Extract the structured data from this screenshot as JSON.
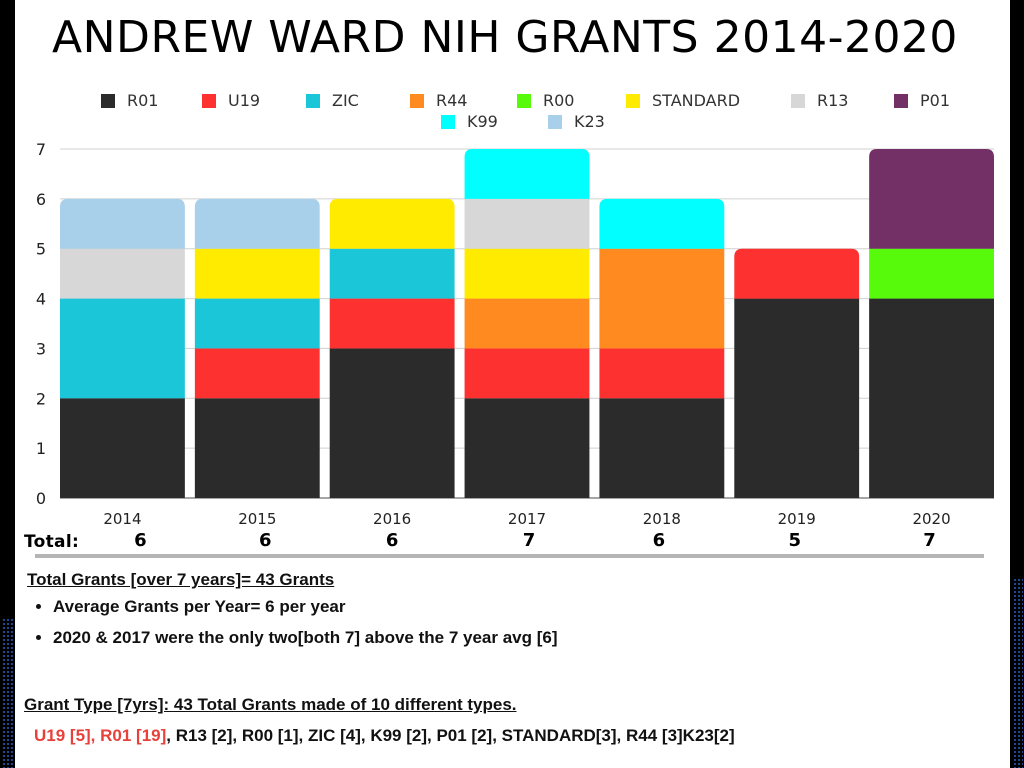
{
  "chart_data": {
    "type": "bar",
    "stacked": true,
    "title": "ANDREW WARD NIH GRANTS 2014-2020",
    "xlabel": "",
    "ylabel": "",
    "categories": [
      "2014",
      "2015",
      "2016",
      "2017",
      "2018",
      "2019",
      "2020"
    ],
    "ylim": [
      0,
      7
    ],
    "yticks": [
      "0",
      "1",
      "2",
      "3",
      "4",
      "5",
      "6",
      "7"
    ],
    "grid": true,
    "legend_position": "top-center",
    "series": [
      {
        "name": "R01",
        "color": "#2b2b2b",
        "values": [
          2,
          2,
          3,
          2,
          2,
          4,
          4
        ]
      },
      {
        "name": "U19",
        "color": "#fe3131",
        "values": [
          0,
          1,
          1,
          1,
          1,
          1,
          0
        ]
      },
      {
        "name": "ZIC",
        "color": "#1bc6d9",
        "values": [
          2,
          1,
          1,
          0,
          0,
          0,
          0
        ]
      },
      {
        "name": "R44",
        "color": "#fe8a20",
        "values": [
          0,
          0,
          0,
          1,
          2,
          0,
          0
        ]
      },
      {
        "name": "R00",
        "color": "#58fa0c",
        "values": [
          0,
          0,
          0,
          0,
          0,
          0,
          1
        ]
      },
      {
        "name": "STANDARD",
        "color": "#ffeb00",
        "values": [
          0,
          1,
          1,
          1,
          0,
          0,
          0
        ]
      },
      {
        "name": "R13",
        "color": "#d7d7d7",
        "values": [
          1,
          0,
          0,
          1,
          0,
          0,
          0
        ]
      },
      {
        "name": "P01",
        "color": "#733066",
        "values": [
          0,
          0,
          0,
          0,
          0,
          0,
          2
        ]
      },
      {
        "name": "K99",
        "color": "#00fffe",
        "values": [
          0,
          0,
          0,
          1,
          1,
          0,
          0
        ]
      },
      {
        "name": "K23",
        "color": "#a9d0ea",
        "values": [
          1,
          1,
          0,
          0,
          0,
          0,
          0
        ]
      }
    ]
  },
  "header": {
    "title": "ANDREW WARD NIH GRANTS 2014-2020"
  },
  "totals": {
    "label": "Total:",
    "values": [
      "6",
      "6",
      "6",
      "7",
      "6",
      "5",
      "7"
    ]
  },
  "summary": {
    "heading": "Total Grants [over 7 years]=  43 Grants",
    "bullets": [
      "Average Grants per Year=  6 per year",
      "2020 & 2017 were the only two[both 7] above the 7 year avg [6]"
    ]
  },
  "grant_types": {
    "heading": "Grant Type [7yrs]: 43 Total Grants made of 10 different types.",
    "highlighted": "U19 [5], R01 [19]",
    "rest": ", R13 [2],  R00 [1], ZIC [4], K99 [2], P01 [2], STANDARD[3], R44 [3]K23[2]"
  }
}
